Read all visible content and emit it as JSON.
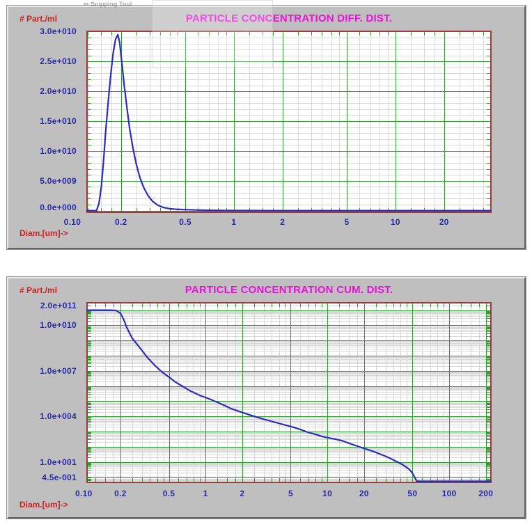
{
  "page": {
    "watermark": "Snipping Tool"
  },
  "colors": {
    "panel_bg": "#bfbfbf",
    "plot_bg": "#ffffff",
    "title_magenta": "#e812d8",
    "axis_label_red": "#cf1f1f",
    "tick_label_blue": "#2a2aa6",
    "grid_major_green": "#2f9e2f",
    "grid_minor_gray": "#d8d8d8",
    "curve_blue": "#2b2bbe",
    "plot_border_red": "#9c3b3b"
  },
  "chart_data": [
    {
      "type": "line",
      "title": "PARTICLE CONCENTRATION DIFF. DIST.",
      "y_unit_label": "# Part./ml",
      "x_axis_label": "Diam.[um]->",
      "x_scale": "log",
      "y_scale": "linear",
      "x_domain": [
        0.122,
        39.4
      ],
      "y_domain": [
        -400000000.0,
        30170000000.0
      ],
      "x_ticks": [
        {
          "v": 0.1,
          "label": "0.10"
        },
        {
          "v": 0.2,
          "label": "0.2"
        },
        {
          "v": 0.5,
          "label": "0.5"
        },
        {
          "v": 1,
          "label": "1"
        },
        {
          "v": 2,
          "label": "2"
        },
        {
          "v": 5,
          "label": "5"
        },
        {
          "v": 10,
          "label": "10"
        },
        {
          "v": 20,
          "label": "20"
        }
      ],
      "x_grid_major": [
        0.2,
        0.5,
        1,
        2,
        5,
        10,
        20
      ],
      "y_ticks": [
        {
          "v": 30000000000.0,
          "label": "3.0e+010"
        },
        {
          "v": 25000000000.0,
          "label": "2.5e+010"
        },
        {
          "v": 20000000000.0,
          "label": "2.0e+010"
        },
        {
          "v": 15000000000.0,
          "label": "1.5e+010"
        },
        {
          "v": 10000000000.0,
          "label": "1.0e+010"
        },
        {
          "v": 5000000000.0,
          "label": "5.0e+009"
        },
        {
          "v": 0,
          "label": "0.0e+000"
        }
      ],
      "y_grid_major": [
        0,
        5000000000.0,
        10000000000.0,
        15000000000.0,
        20000000000.0,
        25000000000.0,
        30000000000.0
      ],
      "y_grid_minor_step": 1000000000.0,
      "points": [
        [
          0.122,
          0
        ],
        [
          0.141,
          0
        ],
        [
          0.146,
          1200000000.0
        ],
        [
          0.151,
          4000000000.0
        ],
        [
          0.156,
          8500000000.0
        ],
        [
          0.161,
          13500000000.0
        ],
        [
          0.167,
          18500000000.0
        ],
        [
          0.173,
          23000000000.0
        ],
        [
          0.179,
          26500000000.0
        ],
        [
          0.185,
          28700000000.0
        ],
        [
          0.191,
          29500000000.0
        ],
        [
          0.196,
          28200000000.0
        ],
        [
          0.202,
          25000000000.0
        ],
        [
          0.209,
          21200000000.0
        ],
        [
          0.217,
          17500000000.0
        ],
        [
          0.226,
          13800000000.0
        ],
        [
          0.237,
          10500000000.0
        ],
        [
          0.249,
          7700000000.0
        ],
        [
          0.262,
          5500000000.0
        ],
        [
          0.277,
          3800000000.0
        ],
        [
          0.294,
          2500000000.0
        ],
        [
          0.314,
          1550000000.0
        ],
        [
          0.338,
          900000000.0
        ],
        [
          0.366,
          520000000.0
        ],
        [
          0.4,
          320000000.0
        ],
        [
          0.44,
          220000000.0
        ],
        [
          0.5,
          160000000.0
        ],
        [
          0.58,
          100000000.0
        ],
        [
          0.7,
          55000000.0
        ],
        [
          0.9,
          22000000.0
        ],
        [
          1.3,
          6000000.0
        ],
        [
          2.0,
          1500000.0
        ],
        [
          4.0,
          200000.0
        ],
        [
          39.4,
          0
        ]
      ]
    },
    {
      "type": "line",
      "title": "PARTICLE CONCENTRATION CUM. DIST.",
      "y_unit_label": "# Part./ml",
      "x_axis_label": "Diam.[um]->",
      "x_scale": "log",
      "y_scale": "log",
      "x_domain": [
        0.105,
        223
      ],
      "y_domain": [
        0.403,
        340000000000.0
      ],
      "x_ticks": [
        {
          "v": 0.1,
          "label": "0.10"
        },
        {
          "v": 0.2,
          "label": "0.2"
        },
        {
          "v": 0.5,
          "label": "0.5"
        },
        {
          "v": 1,
          "label": "1"
        },
        {
          "v": 2,
          "label": "2"
        },
        {
          "v": 5,
          "label": "5"
        },
        {
          "v": 10,
          "label": "10"
        },
        {
          "v": 20,
          "label": "20"
        },
        {
          "v": 50,
          "label": "50"
        },
        {
          "v": 100,
          "label": "100"
        },
        {
          "v": 200,
          "label": "200"
        }
      ],
      "x_grid_major": [
        0.2,
        0.5,
        1,
        2,
        5,
        10,
        20,
        50,
        100,
        200
      ],
      "y_ticks": [
        {
          "v": 200000000000.0,
          "label": "2.0e+011"
        },
        {
          "v": 10000000000.0,
          "label": "1.0e+010"
        },
        {
          "v": 10000000.0,
          "label": "1.0e+007"
        },
        {
          "v": 10000.0,
          "label": "1.0e+004"
        },
        {
          "v": 10.0,
          "label": "1.0e+001"
        },
        {
          "v": 0.45,
          "label": "4.5e-001"
        }
      ],
      "points": [
        [
          0.105,
          100000000000.0
        ],
        [
          0.165,
          100000000000.0
        ],
        [
          0.185,
          96000000000.0
        ],
        [
          0.2,
          62000000000.0
        ],
        [
          0.213,
          24000000000.0
        ],
        [
          0.226,
          6800000000.0
        ],
        [
          0.25,
          1400000000.0
        ],
        [
          0.28,
          450000000.0
        ],
        [
          0.335,
          72000000.0
        ],
        [
          0.385,
          22000000.0
        ],
        [
          0.437,
          8700000.0
        ],
        [
          0.5,
          3900000.0
        ],
        [
          0.567,
          1800000.0
        ],
        [
          0.65,
          950000.0
        ],
        [
          0.74,
          500000.0
        ],
        [
          0.9,
          240000.0
        ],
        [
          1.1,
          130000.0
        ],
        [
          1.35,
          65000.0
        ],
        [
          1.63,
          32000.0
        ],
        [
          2.0,
          18000.0
        ],
        [
          2.42,
          11000.0
        ],
        [
          3.0,
          6500.0
        ],
        [
          3.6,
          4400.0
        ],
        [
          4.4,
          2800.0
        ],
        [
          5.3,
          1900.0
        ],
        [
          6.1,
          1300.0
        ],
        [
          6.9,
          900.0
        ],
        [
          8.0,
          650.0
        ],
        [
          9.0,
          480.0
        ],
        [
          10.3,
          380.0
        ],
        [
          11.7,
          310.0
        ],
        [
          13.4,
          240.0
        ],
        [
          15.2,
          165.0
        ],
        [
          17.3,
          115.0
        ],
        [
          19.8,
          80.0
        ],
        [
          22,
          60.0
        ],
        [
          24.2,
          47.0
        ],
        [
          26.7,
          34.0
        ],
        [
          29.4,
          25.0
        ],
        [
          32.4,
          18.0
        ],
        [
          35.8,
          12.0
        ],
        [
          38.3,
          9.2
        ],
        [
          40.9,
          7.0
        ],
        [
          43.1,
          5.3
        ],
        [
          45.5,
          4.0
        ],
        [
          47.6,
          2.9
        ],
        [
          49.9,
          1.8
        ],
        [
          51.5,
          1.15
        ],
        [
          52.7,
          0.8
        ],
        [
          54,
          0.55
        ],
        [
          57,
          0.5
        ],
        [
          223,
          0.5
        ]
      ]
    }
  ]
}
